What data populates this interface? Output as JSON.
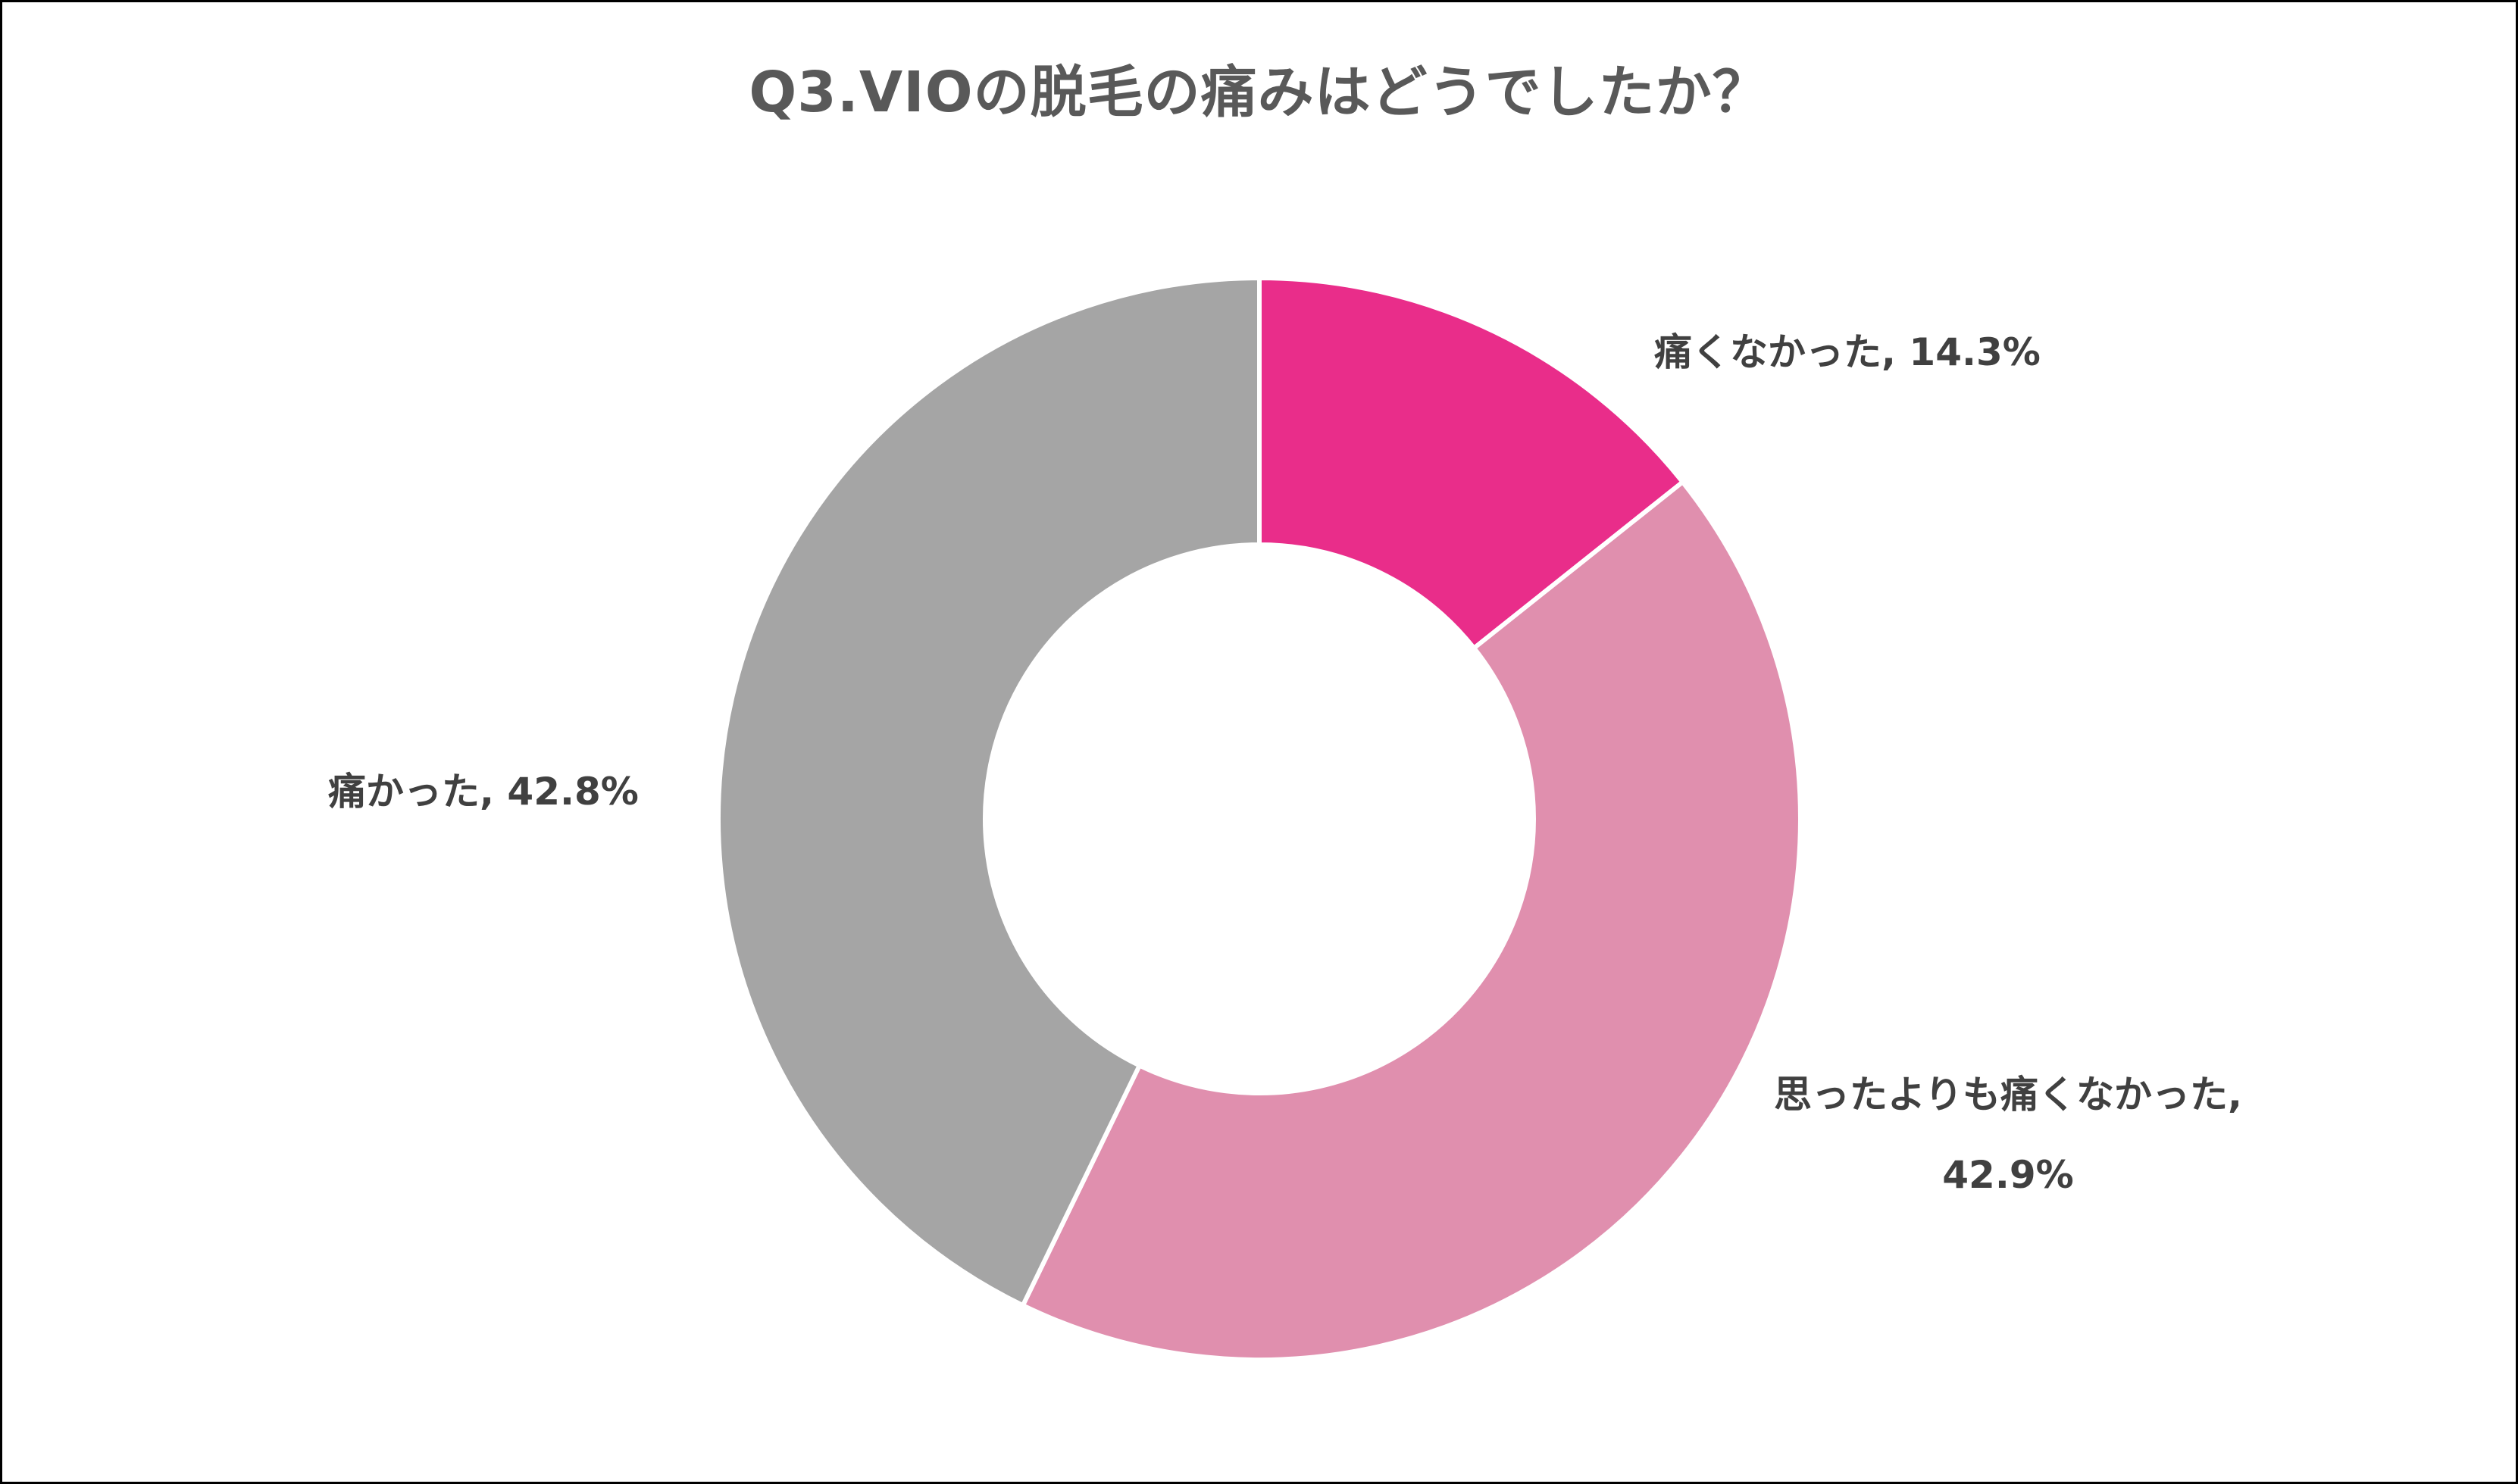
{
  "chart_data": {
    "type": "pie",
    "variant": "donut",
    "title": "Q3.VIOの脱毛の痛みはどうでしたか？",
    "categories": [
      "痛くなかった",
      "思ったよりも痛くなかった",
      "痛かった"
    ],
    "values": [
      14.3,
      42.9,
      42.8
    ],
    "unit": "%",
    "colors": [
      "#E92D8A",
      "#E08FAE",
      "#A5A5A5"
    ],
    "start_angle_deg": 0,
    "direction": "clockwise",
    "hole_ratio": 0.507,
    "legend": "none",
    "data_labels": [
      {
        "category": "痛くなかった",
        "text": "痛くなかった, 14.3%"
      },
      {
        "category": "思ったよりも痛くなかった",
        "line1": "思ったよりも痛くなかった,",
        "line2": "42.9%"
      },
      {
        "category": "痛かった",
        "text": "痛かった, 42.8%"
      }
    ]
  },
  "style": {
    "title_color": "#595959",
    "label_color": "#404040",
    "separator_color": "#FFFFFF",
    "border_color": "#000000"
  }
}
